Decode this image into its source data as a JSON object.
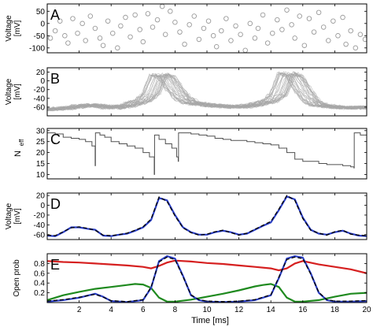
{
  "figure": {
    "xlabel": "Time [ms]",
    "xticks": [
      2,
      4,
      6,
      8,
      10,
      12,
      14,
      16,
      18,
      20
    ],
    "xlim": [
      0,
      20
    ]
  },
  "chart_data": [
    {
      "panel": "A",
      "type": "scatter",
      "ylabel_lines": [
        "Voltage",
        "[mV]"
      ],
      "ylim": [
        -120,
        80
      ],
      "yticks": [
        50,
        0,
        -50,
        -100
      ],
      "marker": "circle-open",
      "color": "#9a9a9a",
      "x": [
        0.2,
        0.5,
        0.8,
        1.1,
        1.3,
        1.6,
        1.9,
        2.2,
        2.4,
        2.7,
        3.0,
        3.3,
        3.5,
        3.8,
        4.1,
        4.4,
        4.6,
        4.9,
        5.2,
        5.5,
        5.8,
        6.0,
        6.3,
        6.6,
        6.9,
        7.2,
        7.4,
        7.7,
        8.0,
        8.3,
        8.6,
        8.9,
        9.2,
        9.5,
        9.8,
        10.1,
        10.4,
        10.6,
        10.9,
        11.2,
        11.5,
        11.8,
        12.1,
        12.4,
        12.7,
        13.0,
        13.2,
        13.5,
        13.8,
        14.1,
        14.4,
        14.7,
        15.0,
        15.3,
        15.5,
        15.8,
        16.1,
        16.4,
        16.7,
        17.0,
        17.3,
        17.6,
        17.9,
        18.2,
        18.5,
        18.7,
        19.0,
        19.3,
        19.6,
        19.9
      ],
      "y": [
        -60,
        -30,
        10,
        -50,
        -80,
        20,
        -40,
        0,
        -70,
        30,
        -20,
        -60,
        -90,
        10,
        -40,
        -100,
        -10,
        25,
        -55,
        35,
        -25,
        -75,
        40,
        -15,
        15,
        70,
        -45,
        50,
        5,
        -35,
        -85,
        -5,
        30,
        -65,
        -20,
        10,
        -50,
        -95,
        -30,
        20,
        -70,
        -10,
        -45,
        -110,
        0,
        -60,
        -20,
        35,
        -80,
        -40,
        15,
        -25,
        55,
        -5,
        -60,
        30,
        -90,
        20,
        -35,
        45,
        -15,
        -70,
        10,
        -50,
        25,
        -85,
        -30,
        -100,
        -45,
        -65
      ]
    },
    {
      "panel": "B",
      "type": "line",
      "ylabel_lines": [
        "Voltage",
        "[mV]"
      ],
      "ylim": [
        -80,
        30
      ],
      "yticks": [
        20,
        0,
        -20,
        -40,
        -60
      ],
      "color": "#a6a6a6",
      "series_count": 30,
      "note": "overlaid noisy traces"
    },
    {
      "panel": "C",
      "type": "line",
      "ylabel": "N",
      "ylabel_sub": "eff",
      "ylim": [
        8,
        31
      ],
      "yticks": [
        30,
        25,
        20,
        15,
        10
      ],
      "color": "#505050",
      "x": [
        0,
        0.5,
        1.0,
        1.5,
        2.0,
        2.4,
        2.8,
        3.0,
        3.02,
        3.3,
        3.6,
        4.0,
        4.5,
        5.0,
        5.5,
        6.0,
        6.4,
        6.7,
        6.72,
        7.0,
        7.4,
        7.8,
        8.1,
        8.2,
        8.22,
        8.5,
        9.0,
        9.5,
        10.0,
        10.5,
        11.0,
        11.5,
        12.0,
        12.5,
        13.0,
        13.5,
        14.0,
        14.5,
        15.0,
        15.5,
        16.0,
        16.5,
        17.0,
        17.5,
        18.0,
        18.5,
        19.0,
        19.2,
        19.22,
        19.6,
        20.0
      ],
      "y": [
        29,
        28.5,
        27,
        26.5,
        26,
        25,
        23,
        14,
        29,
        28,
        27,
        25,
        24,
        23,
        22,
        20,
        18,
        10,
        28,
        26,
        24,
        22,
        18,
        16,
        29,
        29,
        28.5,
        28,
        27.5,
        26.5,
        26,
        25.5,
        25.5,
        25,
        24.5,
        24,
        23.5,
        22,
        20,
        17,
        16,
        16,
        15,
        14.5,
        14.5,
        14,
        13.5,
        13,
        29,
        28,
        27
      ]
    },
    {
      "panel": "D",
      "type": "line",
      "ylabel_lines": [
        "Voltage",
        "[mV]"
      ],
      "ylim": [
        -70,
        25
      ],
      "yticks": [
        20,
        0,
        -20,
        -40,
        -60
      ],
      "series": [
        {
          "color": "#2b3fc7",
          "style": "solid",
          "x": [
            0,
            0.5,
            1.0,
            1.5,
            2.0,
            2.5,
            3.0,
            3.5,
            4.0,
            4.5,
            5.0,
            5.5,
            6.0,
            6.5,
            7.0,
            7.5,
            8.0,
            8.5,
            9.0,
            9.5,
            10.0,
            10.5,
            11.0,
            11.5,
            12.0,
            12.5,
            13.0,
            13.5,
            14.0,
            14.5,
            15.0,
            15.5,
            16.0,
            16.5,
            17.0,
            17.5,
            18.0,
            18.5,
            19.0,
            19.5,
            20.0
          ],
          "y": [
            -62,
            -63,
            -55,
            -45,
            -45,
            -48,
            -50,
            -62,
            -63,
            -60,
            -58,
            -52,
            -45,
            -30,
            15,
            10,
            -20,
            -45,
            -55,
            -60,
            -60,
            -55,
            -52,
            -55,
            -60,
            -58,
            -50,
            -42,
            -35,
            -10,
            18,
            12,
            -25,
            -50,
            -58,
            -60,
            -55,
            -52,
            -58,
            -62,
            -63
          ]
        },
        {
          "color": "#000000",
          "style": "dashed",
          "x": [
            0,
            0.5,
            1.0,
            1.5,
            2.0,
            2.5,
            3.0,
            3.5,
            4.0,
            4.5,
            5.0,
            5.5,
            6.0,
            6.5,
            7.0,
            7.5,
            8.0,
            8.5,
            9.0,
            9.5,
            10.0,
            10.5,
            11.0,
            11.5,
            12.0,
            12.5,
            13.0,
            13.5,
            14.0,
            14.5,
            15.0,
            15.5,
            16.0,
            16.5,
            17.0,
            17.5,
            18.0,
            18.5,
            19.0,
            19.5,
            20.0
          ],
          "y": [
            -61,
            -62,
            -54,
            -46,
            -44,
            -47,
            -51,
            -61,
            -62,
            -60,
            -57,
            -51,
            -44,
            -28,
            17,
            8,
            -22,
            -46,
            -56,
            -61,
            -59,
            -54,
            -51,
            -56,
            -61,
            -57,
            -49,
            -41,
            -33,
            -8,
            20,
            10,
            -27,
            -51,
            -57,
            -61,
            -54,
            -51,
            -59,
            -61,
            -62
          ]
        }
      ]
    },
    {
      "panel": "E",
      "type": "line",
      "ylabel": "Open prob",
      "ylim": [
        0,
        1.0
      ],
      "yticks": [
        0.8,
        0.6,
        0.4,
        0.2
      ],
      "series": [
        {
          "color": "#d62020",
          "style": "solid",
          "x": [
            0,
            1,
            2,
            3,
            4,
            5,
            6,
            6.5,
            7.0,
            7.5,
            8,
            9,
            10,
            11,
            12,
            13,
            14,
            14.5,
            15.0,
            15.5,
            16,
            17,
            18,
            19,
            20
          ],
          "y": [
            0.85,
            0.83,
            0.82,
            0.8,
            0.78,
            0.76,
            0.73,
            0.7,
            0.75,
            0.82,
            0.86,
            0.84,
            0.81,
            0.79,
            0.76,
            0.73,
            0.7,
            0.66,
            0.7,
            0.8,
            0.85,
            0.78,
            0.73,
            0.68,
            0.6
          ]
        },
        {
          "color": "#1f8a1f",
          "style": "solid",
          "x": [
            0,
            1,
            2,
            3,
            4,
            5,
            5.5,
            6,
            6.5,
            7,
            7.5,
            8,
            9,
            10,
            11,
            12,
            13,
            13.5,
            14,
            14.5,
            15,
            15.5,
            16,
            17,
            18,
            19,
            20
          ],
          "y": [
            0.05,
            0.15,
            0.22,
            0.28,
            0.32,
            0.36,
            0.38,
            0.37,
            0.3,
            0.1,
            0.02,
            0.02,
            0.06,
            0.12,
            0.18,
            0.25,
            0.33,
            0.36,
            0.38,
            0.32,
            0.1,
            0.02,
            0.02,
            0.05,
            0.12,
            0.18,
            0.2
          ]
        },
        {
          "color": "#2b3fc7",
          "style": "solid",
          "x": [
            0,
            1,
            2,
            3,
            3.5,
            4,
            5,
            6,
            6.5,
            7,
            7.5,
            8,
            8.5,
            9,
            9.5,
            10,
            11,
            12,
            13,
            14,
            14.5,
            15,
            15.5,
            16,
            16.5,
            17,
            17.5,
            18,
            19,
            20
          ],
          "y": [
            0.02,
            0.05,
            0.1,
            0.18,
            0.12,
            0.03,
            0.01,
            0.05,
            0.3,
            0.85,
            0.95,
            0.9,
            0.55,
            0.15,
            0.05,
            0.02,
            0.01,
            0.02,
            0.05,
            0.15,
            0.5,
            0.9,
            0.95,
            0.92,
            0.6,
            0.2,
            0.05,
            0.02,
            0.02,
            0.03
          ]
        },
        {
          "color": "#000000",
          "style": "dashed",
          "x": [
            0,
            1,
            2,
            3,
            3.5,
            4,
            5,
            6,
            6.5,
            7,
            7.5,
            8,
            8.5,
            9,
            9.5,
            10,
            11,
            12,
            13,
            14,
            14.5,
            15,
            15.5,
            16,
            16.5,
            17,
            17.5,
            18,
            19,
            20
          ],
          "y": [
            0.03,
            0.06,
            0.11,
            0.17,
            0.11,
            0.04,
            0.02,
            0.06,
            0.32,
            0.83,
            0.93,
            0.88,
            0.53,
            0.16,
            0.06,
            0.03,
            0.02,
            0.03,
            0.06,
            0.16,
            0.52,
            0.88,
            0.93,
            0.9,
            0.58,
            0.21,
            0.06,
            0.03,
            0.03,
            0.04
          ]
        }
      ]
    }
  ]
}
